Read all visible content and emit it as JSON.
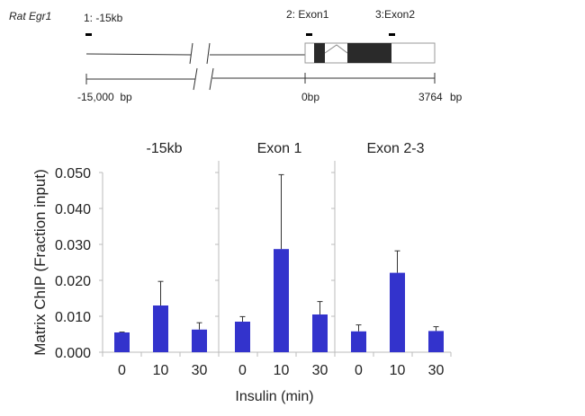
{
  "gene_diagram": {
    "gene_label": "Rat Egr1",
    "probes": [
      "1: -15kb",
      "2: Exon1",
      "3:Exon2"
    ],
    "scale_labels": {
      "left": "-15,000  bp",
      "mid": "0bp",
      "right": "3764",
      "right_unit": "bp"
    }
  },
  "chart_data": {
    "type": "bar",
    "ylabel": "Matrix ChIP (Fraction input)",
    "xlabel": "Insulin (min)",
    "ylim": [
      0,
      0.05
    ],
    "yticks": [
      "0.000",
      "0.010",
      "0.020",
      "0.030",
      "0.040",
      "0.050"
    ],
    "categories": [
      "0",
      "10",
      "30"
    ],
    "bar_color": "#3333cc",
    "grid": false,
    "panels": [
      {
        "title": "-15kb",
        "values": [
          0.0055,
          0.013,
          0.0063
        ],
        "error_top": [
          0.0056,
          0.0197,
          0.0082
        ]
      },
      {
        "title": "Exon 1",
        "values": [
          0.0085,
          0.0287,
          0.0105
        ],
        "error_top": [
          0.0099,
          0.0494,
          0.0141
        ]
      },
      {
        "title": "Exon 2-3",
        "values": [
          0.0058,
          0.0221,
          0.0059
        ],
        "error_top": [
          0.0076,
          0.0282,
          0.0071
        ]
      }
    ]
  }
}
